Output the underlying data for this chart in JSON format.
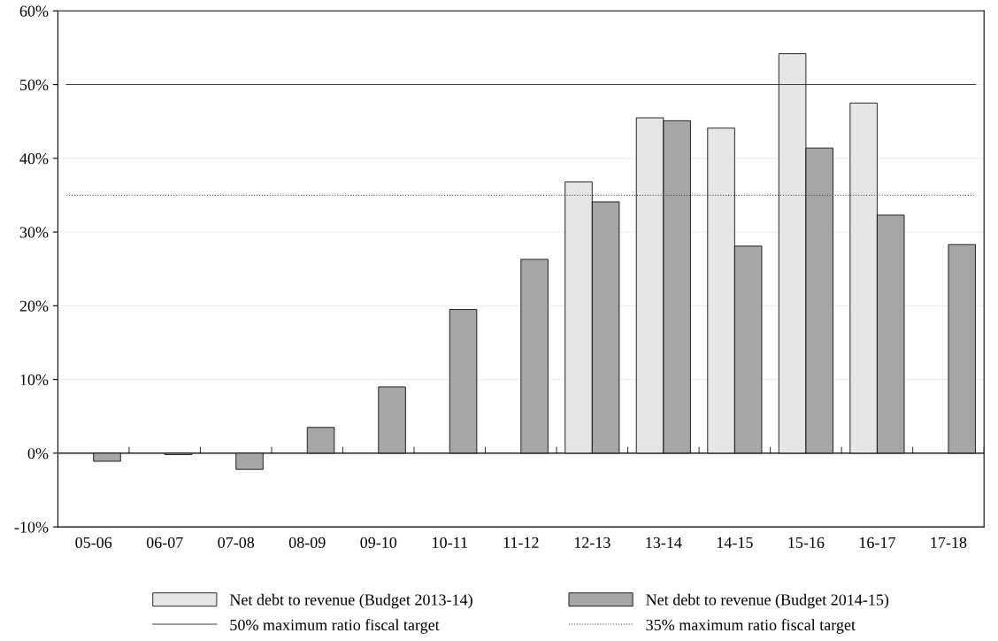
{
  "chart_data": {
    "type": "bar",
    "categories": [
      "05-06",
      "06-07",
      "07-08",
      "08-09",
      "09-10",
      "10-11",
      "11-12",
      "12-13",
      "13-14",
      "14-15",
      "15-16",
      "16-17",
      "17-18"
    ],
    "series": [
      {
        "name": "Net debt to revenue (Budget 2013-14)",
        "color": "#e6e6e6",
        "values": [
          null,
          null,
          null,
          null,
          null,
          null,
          null,
          36.8,
          45.5,
          44.1,
          54.2,
          47.5,
          null
        ]
      },
      {
        "name": "Net debt to revenue (Budget 2014-15)",
        "color": "#a6a6a6",
        "values": [
          -1.1,
          -0.2,
          -2.2,
          3.5,
          9.0,
          19.5,
          26.3,
          34.1,
          45.1,
          28.1,
          41.4,
          32.3,
          28.3
        ]
      }
    ],
    "ylim": [
      -10,
      60
    ],
    "yticks": [
      {
        "value": -10,
        "label": "-10%"
      },
      {
        "value": 0,
        "label": "0%"
      },
      {
        "value": 10,
        "label": "10%"
      },
      {
        "value": 20,
        "label": "20%"
      },
      {
        "value": 30,
        "label": "30%"
      },
      {
        "value": 40,
        "label": "40%"
      },
      {
        "value": 50,
        "label": "50%"
      },
      {
        "value": 60,
        "label": "60%"
      }
    ],
    "ref_lines": [
      {
        "axis": "y",
        "value": 50,
        "label": "50% maximum ratio fiscal target",
        "color": "#404040",
        "line_style": "solid"
      },
      {
        "axis": "y",
        "value": 35,
        "label": "35% maximum ratio fiscal target",
        "color": "#404040",
        "line_style": "dotted"
      }
    ],
    "grid": "y",
    "legend": "bottom"
  }
}
